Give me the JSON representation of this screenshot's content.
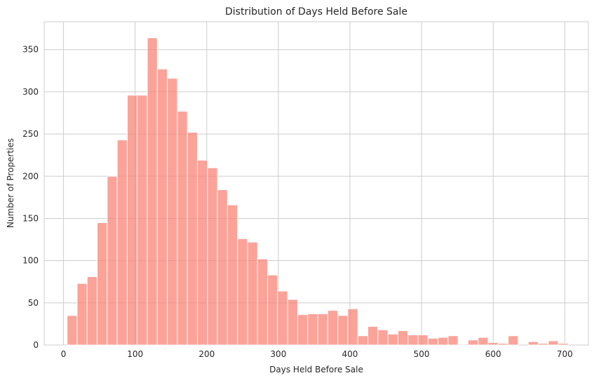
{
  "chart_data": {
    "type": "bar",
    "title": "Distribution of Days Held Before Sale",
    "xlabel": "Days Held Before Sale",
    "ylabel": "Number of Properties",
    "xlim": [
      -27,
      733
    ],
    "ylim": [
      0,
      383
    ],
    "xticks": [
      0,
      100,
      200,
      300,
      400,
      500,
      600,
      700
    ],
    "yticks": [
      0,
      50,
      100,
      150,
      200,
      250,
      300,
      350
    ],
    "grid": true,
    "color": "#fa8072",
    "bin_start": 5,
    "bin_width": 14,
    "values": [
      35,
      73,
      81,
      145,
      200,
      243,
      296,
      296,
      364,
      327,
      316,
      277,
      252,
      219,
      210,
      184,
      166,
      126,
      122,
      102,
      83,
      64,
      54,
      36,
      37,
      37,
      41,
      35,
      43,
      11,
      22,
      18,
      13,
      17,
      12,
      12,
      8,
      9,
      11,
      1,
      6,
      9,
      3,
      2,
      11,
      0,
      4,
      2,
      5,
      2
    ]
  }
}
